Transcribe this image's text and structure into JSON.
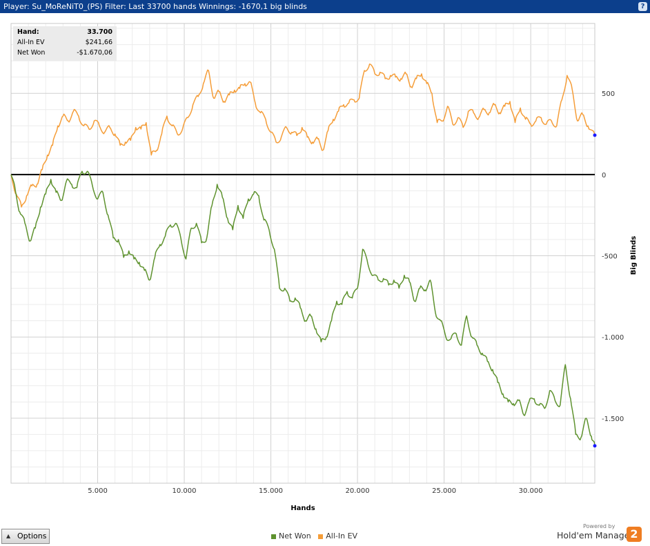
{
  "window": {
    "title": "Player: Su_MoReNiT0_(PS) Filter: Last 33700 hands Winnings: -1670,1 big blinds",
    "help_label": "?"
  },
  "infobox": {
    "rows": [
      {
        "label": "Hand:",
        "value": "33.700"
      },
      {
        "label": "All-In EV",
        "value": "$241,66"
      },
      {
        "label": "Net Won",
        "value": "-$1.670,06"
      }
    ]
  },
  "options_button": {
    "label": "Options"
  },
  "brand": {
    "powered": "Powered by",
    "name": "Hold'em Manager",
    "logo": "2"
  },
  "chart_data": {
    "type": "line",
    "title": "",
    "xlabel": "Hands",
    "ylabel": "Big Blinds",
    "xlim": [
      0,
      33700
    ],
    "ylim": [
      -1900,
      930
    ],
    "x_ticks": [
      5000,
      10000,
      15000,
      20000,
      25000,
      30000
    ],
    "x_tick_labels": [
      "5.000",
      "10.000",
      "15.000",
      "20.000",
      "25.000",
      "30.000"
    ],
    "y_ticks": [
      500,
      0,
      -500,
      -1000,
      -1500
    ],
    "y_tick_labels": [
      "500",
      "0",
      "-500",
      "-1.000",
      "-1.500"
    ],
    "grid": true,
    "legend": "bottom",
    "series": [
      {
        "name": "Net Won",
        "color": "#5e922e",
        "x": [
          0,
          250,
          500,
          800,
          1100,
          1400,
          1700,
          2000,
          2300,
          2600,
          2900,
          3200,
          3500,
          3800,
          4100,
          4400,
          4700,
          5000,
          5300,
          5600,
          5900,
          6200,
          6500,
          6800,
          7100,
          7400,
          7700,
          8000,
          8300,
          8600,
          8900,
          9200,
          9500,
          9800,
          10100,
          10400,
          10700,
          11000,
          11300,
          11600,
          11900,
          12200,
          12500,
          12800,
          13100,
          13400,
          13700,
          14000,
          14300,
          14600,
          14900,
          15200,
          15500,
          15800,
          16100,
          16400,
          16700,
          17000,
          17300,
          17600,
          17900,
          18200,
          18500,
          18800,
          19100,
          19400,
          19700,
          20000,
          20300,
          20600,
          20900,
          21200,
          21500,
          21800,
          22100,
          22400,
          22700,
          23000,
          23300,
          23600,
          23900,
          24200,
          24500,
          24800,
          25100,
          25400,
          25700,
          26000,
          26300,
          26600,
          26900,
          27200,
          27500,
          27800,
          28100,
          28400,
          28700,
          29000,
          29300,
          29600,
          29900,
          30200,
          30500,
          30800,
          31100,
          31400,
          31700,
          32000,
          32300,
          32600,
          32900,
          33200,
          33500,
          33700
        ],
        "y": [
          0,
          -100,
          -230,
          -300,
          -410,
          -330,
          -200,
          -120,
          -30,
          -110,
          -160,
          -40,
          -60,
          -80,
          20,
          20,
          -70,
          -150,
          -110,
          -250,
          -390,
          -400,
          -510,
          -470,
          -520,
          -540,
          -590,
          -650,
          -510,
          -430,
          -380,
          -310,
          -300,
          -390,
          -520,
          -330,
          -300,
          -420,
          -390,
          -190,
          -60,
          -140,
          -270,
          -340,
          -190,
          -270,
          -150,
          -120,
          -130,
          -280,
          -340,
          -460,
          -700,
          -700,
          -780,
          -760,
          -820,
          -900,
          -870,
          -950,
          -1030,
          -1000,
          -900,
          -780,
          -800,
          -720,
          -760,
          -700,
          -460,
          -550,
          -620,
          -650,
          -640,
          -680,
          -650,
          -700,
          -620,
          -660,
          -780,
          -700,
          -710,
          -650,
          -850,
          -900,
          -1000,
          -1010,
          -980,
          -1050,
          -870,
          -1000,
          -1050,
          -1100,
          -1150,
          -1200,
          -1280,
          -1350,
          -1400,
          -1410,
          -1390,
          -1480,
          -1400,
          -1380,
          -1420,
          -1440,
          -1330,
          -1390,
          -1420,
          -1170,
          -1380,
          -1600,
          -1620,
          -1500,
          -1610,
          -1670
        ]
      },
      {
        "name": "All-In EV",
        "color": "#f59d38",
        "x": [
          0,
          300,
          600,
          900,
          1200,
          1500,
          1800,
          2100,
          2400,
          2700,
          3000,
          3300,
          3600,
          3900,
          4200,
          4500,
          4800,
          5100,
          5400,
          5700,
          6000,
          6300,
          6600,
          6900,
          7200,
          7500,
          7800,
          8100,
          8400,
          8700,
          9000,
          9300,
          9600,
          9900,
          10200,
          10500,
          10800,
          11100,
          11400,
          11700,
          12000,
          12300,
          12600,
          12900,
          13200,
          13500,
          13800,
          14100,
          14400,
          14700,
          15000,
          15300,
          15600,
          15900,
          16200,
          16500,
          16800,
          17100,
          17400,
          17700,
          18000,
          18300,
          18600,
          18900,
          19200,
          19500,
          19800,
          20100,
          20400,
          20700,
          21000,
          21300,
          21600,
          21900,
          22200,
          22500,
          22800,
          23100,
          23400,
          23700,
          24000,
          24300,
          24600,
          24900,
          25200,
          25500,
          25800,
          26100,
          26400,
          26700,
          27000,
          27300,
          27600,
          27900,
          28200,
          28500,
          28800,
          29100,
          29400,
          29700,
          30000,
          30300,
          30600,
          30900,
          31200,
          31500,
          31800,
          32100,
          32400,
          32700,
          33000,
          33300,
          33700
        ],
        "y": [
          0,
          -120,
          -200,
          -130,
          -70,
          -60,
          30,
          120,
          180,
          300,
          360,
          330,
          390,
          360,
          300,
          280,
          330,
          300,
          260,
          290,
          250,
          180,
          200,
          210,
          290,
          280,
          320,
          120,
          150,
          250,
          360,
          300,
          250,
          280,
          350,
          430,
          480,
          560,
          640,
          470,
          510,
          450,
          490,
          520,
          530,
          560,
          570,
          440,
          380,
          340,
          260,
          200,
          230,
          290,
          260,
          240,
          290,
          230,
          200,
          220,
          150,
          270,
          340,
          390,
          430,
          440,
          460,
          470,
          640,
          680,
          620,
          630,
          590,
          610,
          600,
          590,
          620,
          540,
          590,
          620,
          560,
          500,
          320,
          330,
          420,
          310,
          350,
          290,
          390,
          380,
          350,
          400,
          380,
          430,
          380,
          420,
          450,
          320,
          410,
          340,
          310,
          330,
          350,
          310,
          330,
          300,
          460,
          610,
          520,
          330,
          370,
          300,
          242
        ]
      }
    ],
    "zero_line": 0
  }
}
